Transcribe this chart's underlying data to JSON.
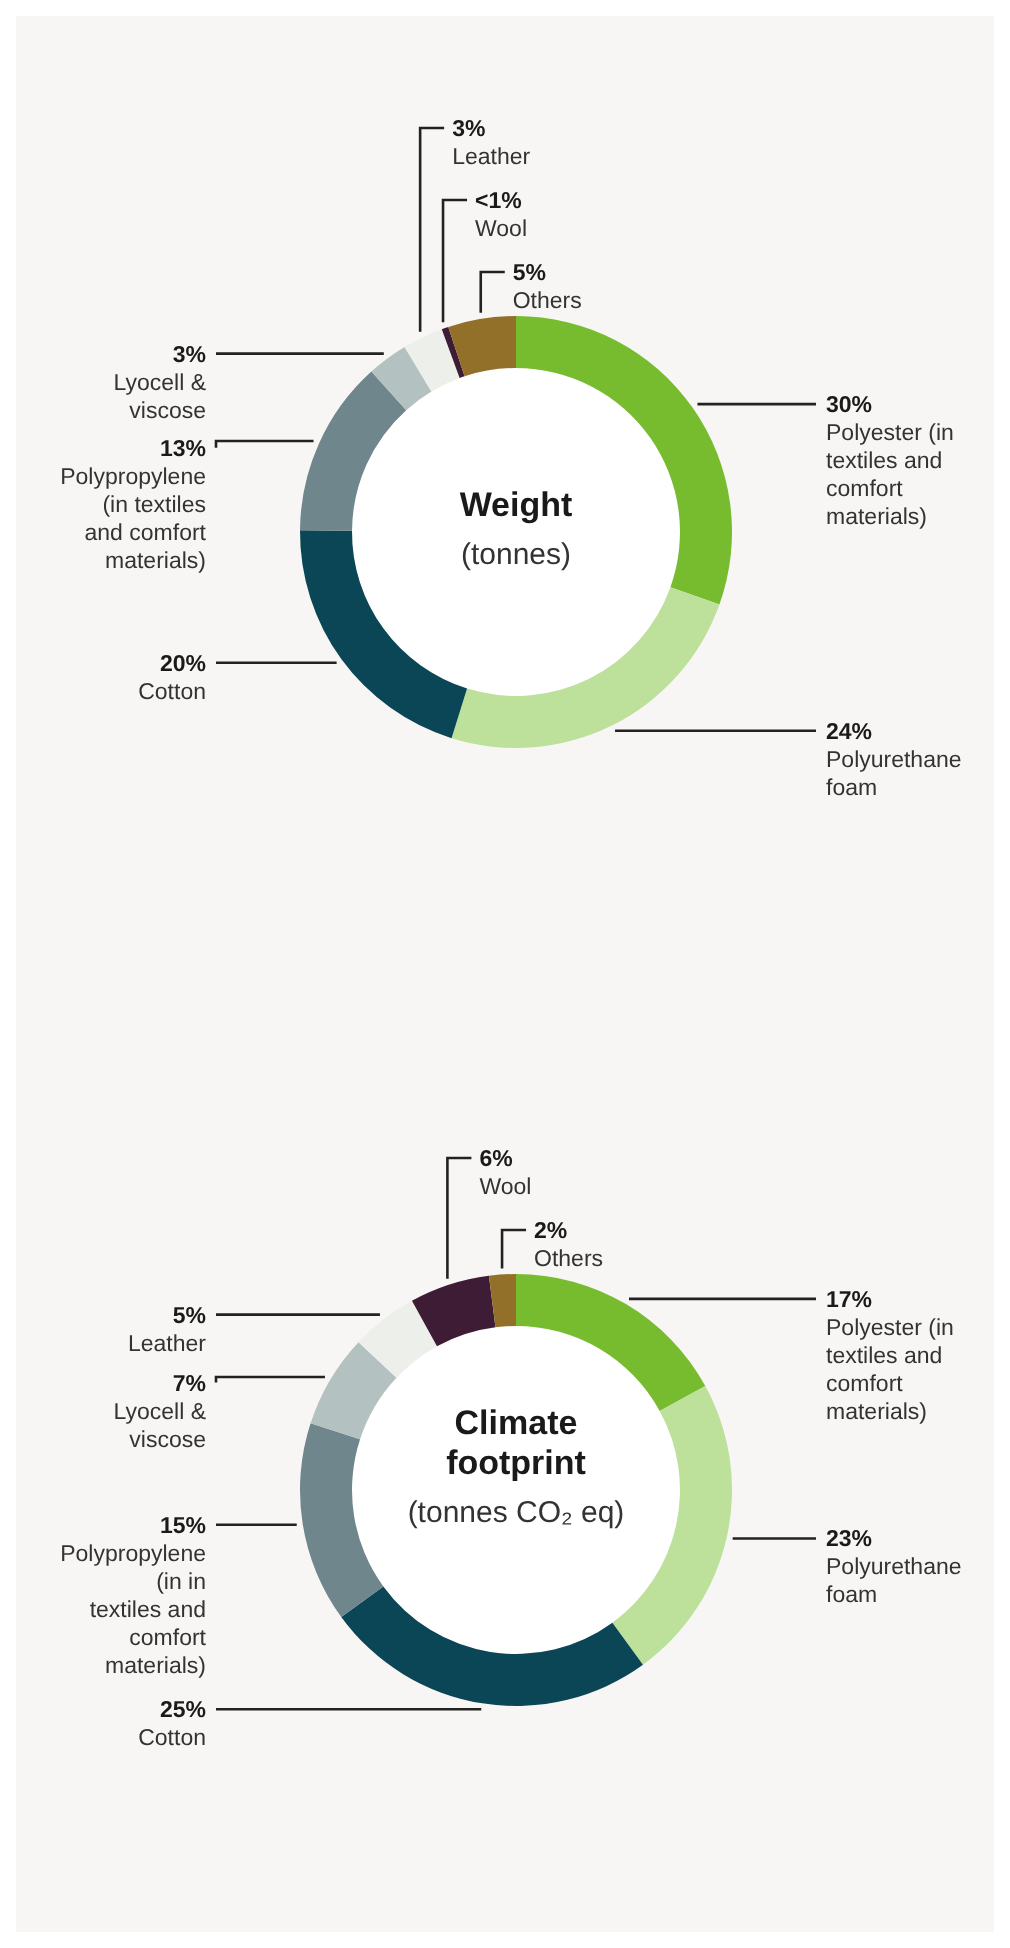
{
  "chart_data": [
    {
      "type": "donut",
      "title": "Weight",
      "subtitle": "(tonnes)",
      "categories": [
        "Polyester (in textiles and comfort materials)",
        "Polyurethane foam",
        "Cotton",
        "Polypropylene (in textiles and comfort materials)",
        "Lyocell & viscose",
        "Leather",
        "Wool",
        "Others"
      ],
      "values": [
        30,
        24,
        20,
        13,
        3,
        3,
        0.5,
        5
      ],
      "value_labels": [
        "30%",
        "24%",
        "20%",
        "13%",
        "3%",
        "3%",
        "<1%",
        "5%"
      ],
      "colors": [
        "#77bc2f",
        "#bde09a",
        "#0a4656",
        "#6f868c",
        "#b3c1c1",
        "#edefea",
        "#3e1c35",
        "#93702a"
      ]
    },
    {
      "type": "donut",
      "title": "Climate footprint",
      "subtitle": "(tonnes CO₂ eq)",
      "categories": [
        "Polyester (in textiles and comfort materials)",
        "Polyurethane foam",
        "Cotton",
        "Polypropylene (in in textiles and comfort materials)",
        "Lyocell & viscose",
        "Leather",
        "Wool",
        "Others"
      ],
      "values": [
        17,
        23,
        25,
        15,
        7,
        5,
        6,
        2
      ],
      "value_labels": [
        "17%",
        "23%",
        "25%",
        "15%",
        "7%",
        "5%",
        "6%",
        "2%"
      ],
      "colors": [
        "#77bc2f",
        "#bde09a",
        "#0a4656",
        "#6f868c",
        "#b3c1c1",
        "#edefea",
        "#3e1c35",
        "#93702a"
      ]
    }
  ]
}
